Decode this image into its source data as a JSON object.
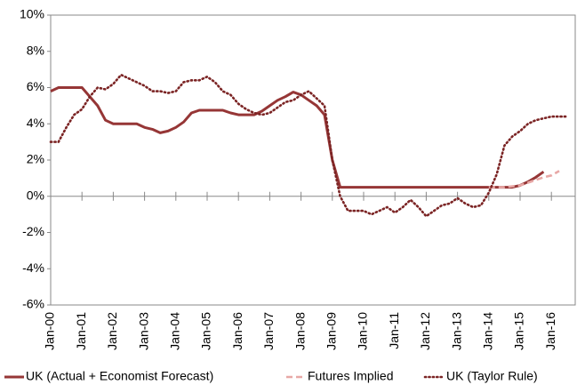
{
  "chart_data": {
    "type": "line",
    "categories": [
      "Jan-00",
      null,
      null,
      null,
      "Jan-01",
      null,
      null,
      null,
      "Jan-02",
      null,
      null,
      null,
      "Jan-03",
      null,
      null,
      null,
      "Jan-04",
      null,
      null,
      null,
      "Jan-05",
      null,
      null,
      null,
      "Jan-06",
      null,
      null,
      null,
      "Jan-07",
      null,
      null,
      null,
      "Jan-08",
      null,
      null,
      null,
      "Jan-09",
      null,
      null,
      null,
      "Jan-10",
      null,
      null,
      null,
      "Jan-11",
      null,
      null,
      null,
      "Jan-12",
      null,
      null,
      null,
      "Jan-13",
      null,
      null,
      null,
      "Jan-14",
      null,
      null,
      null,
      "Jan-15",
      null,
      null,
      null,
      "Jan-16",
      null,
      null
    ],
    "series": [
      {
        "name": "UK (Actual + Economist Forecast)",
        "color": "#963636",
        "style": "solid",
        "values": [
          5.8,
          6.0,
          6.0,
          6.0,
          6.0,
          5.5,
          5.0,
          4.2,
          4.0,
          4.0,
          4.0,
          4.0,
          3.8,
          3.7,
          3.5,
          3.6,
          3.8,
          4.1,
          4.6,
          4.75,
          4.75,
          4.75,
          4.75,
          4.6,
          4.5,
          4.5,
          4.5,
          4.7,
          5.0,
          5.3,
          5.5,
          5.75,
          5.6,
          5.3,
          5.0,
          4.5,
          2.0,
          0.5,
          0.5,
          0.5,
          0.5,
          0.5,
          0.5,
          0.5,
          0.5,
          0.5,
          0.5,
          0.5,
          0.5,
          0.5,
          0.5,
          0.5,
          0.5,
          0.5,
          0.5,
          0.5,
          0.5,
          0.5,
          0.5,
          0.5,
          0.6,
          0.8,
          1.05,
          1.35,
          null,
          null,
          null
        ]
      },
      {
        "name": "Futures Implied",
        "color": "#e8a8a6",
        "style": "dashed",
        "values": [
          null,
          null,
          null,
          null,
          null,
          null,
          null,
          null,
          null,
          null,
          null,
          null,
          null,
          null,
          null,
          null,
          null,
          null,
          null,
          null,
          null,
          null,
          null,
          null,
          null,
          null,
          null,
          null,
          null,
          null,
          null,
          null,
          null,
          null,
          null,
          null,
          null,
          null,
          null,
          null,
          null,
          null,
          null,
          null,
          null,
          null,
          null,
          null,
          null,
          null,
          null,
          null,
          null,
          null,
          null,
          null,
          0.5,
          0.5,
          0.5,
          0.55,
          0.6,
          0.75,
          0.9,
          1.05,
          1.15,
          1.4,
          null
        ]
      },
      {
        "name": "UK (Taylor Rule)",
        "color": "#7b2424",
        "style": "dotted",
        "values": [
          3.0,
          3.0,
          3.8,
          4.5,
          4.8,
          5.5,
          6.0,
          5.9,
          6.2,
          6.7,
          6.5,
          6.3,
          6.1,
          5.8,
          5.8,
          5.7,
          5.8,
          6.3,
          6.4,
          6.4,
          6.6,
          6.3,
          5.8,
          5.6,
          5.1,
          4.8,
          4.6,
          4.5,
          4.6,
          4.9,
          5.2,
          5.3,
          5.6,
          5.8,
          5.4,
          5.0,
          2.0,
          0.0,
          -0.8,
          -0.8,
          -0.8,
          -1.0,
          -0.8,
          -0.6,
          -0.9,
          -0.6,
          -0.2,
          -0.6,
          -1.1,
          -0.8,
          -0.5,
          -0.4,
          -0.1,
          -0.4,
          -0.6,
          -0.5,
          0.2,
          1.2,
          2.8,
          3.3,
          3.6,
          4.0,
          4.2,
          4.3,
          4.4,
          4.4,
          4.4
        ]
      }
    ],
    "ylim": [
      -6,
      10
    ],
    "yticks": [
      {
        "value": -6,
        "label": "-6%"
      },
      {
        "value": -4,
        "label": "-4%"
      },
      {
        "value": -2,
        "label": "-2%"
      },
      {
        "value": 0,
        "label": "0%"
      },
      {
        "value": 2,
        "label": "2%"
      },
      {
        "value": 4,
        "label": "4%"
      },
      {
        "value": 6,
        "label": "6%"
      },
      {
        "value": 8,
        "label": "8%"
      },
      {
        "value": 10,
        "label": "10%"
      }
    ],
    "legend": "bottom"
  }
}
